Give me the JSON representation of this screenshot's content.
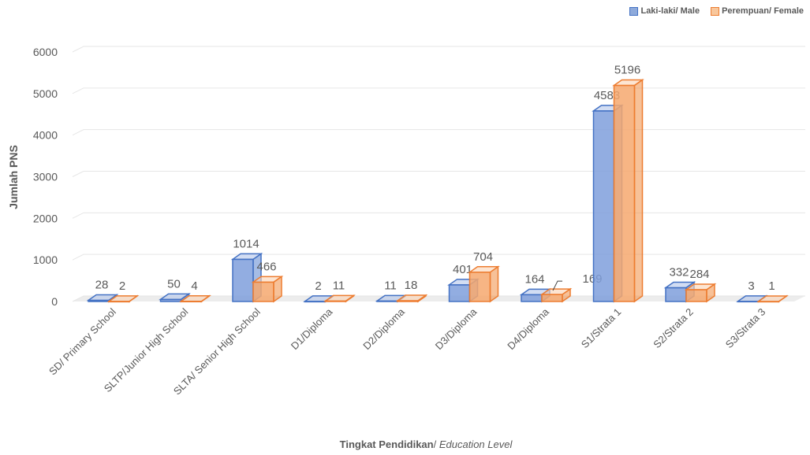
{
  "chart_data": {
    "type": "bar",
    "categories": [
      "SD/ Primary School",
      "SLTP/Junior High School",
      "SLTA/ Senior High School",
      "D1/Diploma",
      "D2/Diploma",
      "D3/Diploma",
      "D4/Diploma",
      "S1/Strata 1",
      "S2/Strata 2",
      "S3/Strata 3"
    ],
    "series": [
      {
        "name": "Laki-laki/ Male",
        "values": [
          28,
          50,
          1014,
          2,
          11,
          401,
          164,
          4583,
          332,
          3
        ],
        "color": "#4472C4"
      },
      {
        "name": "Perempuan/ Female",
        "values": [
          2,
          4,
          466,
          11,
          18,
          704,
          169,
          5196,
          284,
          1
        ],
        "color": "#ED7D31"
      }
    ],
    "ylabel": "Jumlah PNS",
    "xlabel_bold": "Tingkat Pendidikan",
    "xlabel_italic": "Education Level",
    "ylim": [
      0,
      6000
    ],
    "yticks": [
      0,
      1000,
      2000,
      3000,
      4000,
      5000,
      6000
    ],
    "grid": true,
    "legend_position": "top-right",
    "style": "3d-clustered-column"
  }
}
